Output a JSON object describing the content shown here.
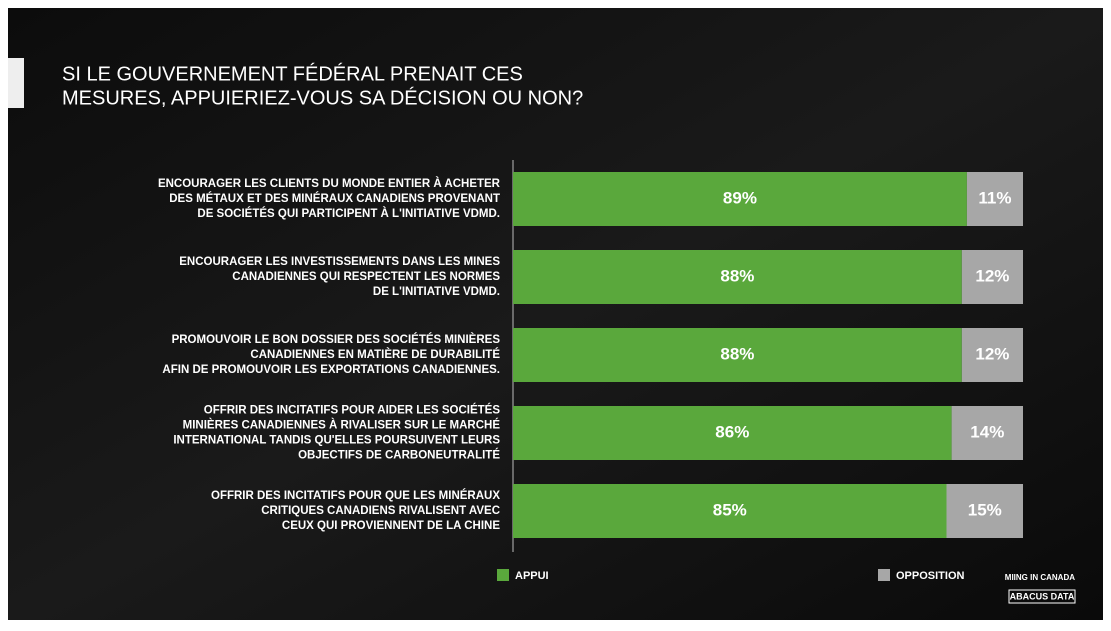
{
  "chart_data": {
    "type": "stacked_barh",
    "title": [
      "SI LE GOUVERNEMENT FÉDÉRAL PRENAIT CES",
      "MESURES, APPUIERIEZ-VOUS SA DÉCISION OU NON?"
    ],
    "categories": [
      [
        "ENCOURAGER LES CLIENTS DU MONDE ENTIER À ACHETER",
        "DES MÉTAUX ET DES MINÉRAUX CANADIENS PROVENANT",
        "DE SOCIÉTÉS QUI PARTICIPENT À L'INITIATIVE VDMD."
      ],
      [
        "ENCOURAGER LES INVESTISSEMENTS DANS LES MINES",
        "CANADIENNES QUI RESPECTENT LES NORMES",
        "DE L'INITIATIVE VDMD."
      ],
      [
        "PROMOUVOIR LE BON DOSSIER DES SOCIÉTÉS MINIÈRES",
        "CANADIENNES EN MATIÈRE DE DURABILITÉ",
        "AFIN DE PROMOUVOIR LES EXPORTATIONS CANADIENNES."
      ],
      [
        "OFFRIR DES INCITATIFS POUR AIDER LES SOCIÉTÉS",
        "MINIÈRES CANADIENNES À RIVALISER SUR LE MARCHÉ",
        "INTERNATIONAL TANDIS QU'ELLES POURSUIVENT LEURS",
        "OBJECTIFS DE CARBONEUTRALITÉ"
      ],
      [
        "OFFRIR DES INCITATIFS POUR QUE LES MINÉRAUX",
        "CRITIQUES CANADIENS RIVALISENT AVEC",
        "CEUX QUI PROVIENNENT DE LA CHINE"
      ]
    ],
    "series": [
      {
        "name": "APPUI",
        "color": "#5aa83c",
        "values": [
          89,
          88,
          88,
          86,
          85
        ],
        "value_labels": [
          "89%",
          "88%",
          "88%",
          "86%",
          "85%"
        ]
      },
      {
        "name": "OPPOSITION",
        "color": "#a7a7a7",
        "values": [
          11,
          12,
          12,
          14,
          15
        ],
        "value_labels": [
          "11%",
          "12%",
          "12%",
          "14%",
          "15%"
        ]
      }
    ],
    "xlim": [
      0,
      100
    ],
    "logos": [
      "MIING IN CANADA",
      "ABACUS DATA"
    ]
  }
}
